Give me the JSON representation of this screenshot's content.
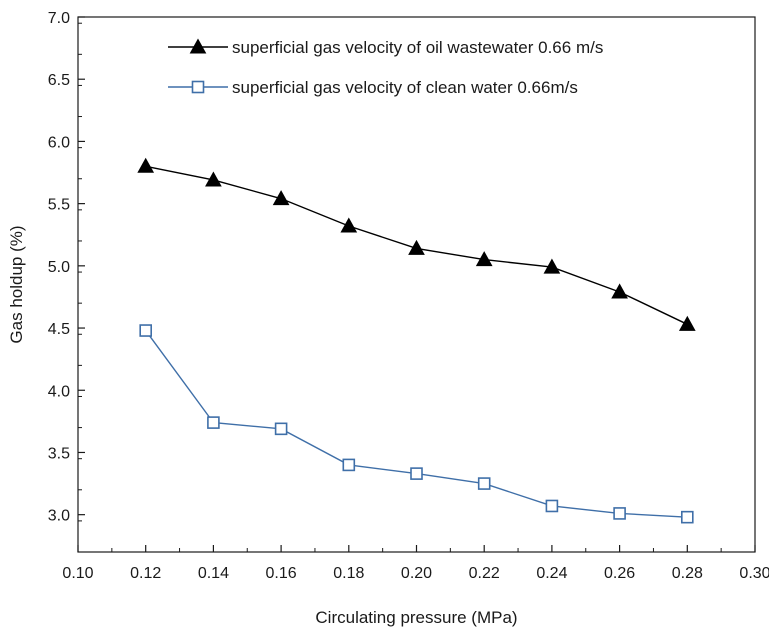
{
  "chart_data": {
    "type": "line",
    "xlabel": "Circulating pressure (MPa)",
    "ylabel": "Gas holdup (%)",
    "xlim": [
      0.1,
      0.3
    ],
    "ylim": [
      2.7,
      7.0
    ],
    "xticks": [
      "0.10",
      "0.12",
      "0.14",
      "0.16",
      "0.18",
      "0.20",
      "0.22",
      "0.24",
      "0.26",
      "0.28",
      "0.30"
    ],
    "yticks": [
      "3.0",
      "3.5",
      "4.0",
      "4.5",
      "5.0",
      "5.5",
      "6.0",
      "6.5",
      "7.0"
    ],
    "grid": false,
    "legend_position": "top-right",
    "x": [
      0.12,
      0.14,
      0.16,
      0.18,
      0.2,
      0.22,
      0.24,
      0.26,
      0.28
    ],
    "series": [
      {
        "name": "superficial gas velocity of oil wastewater 0.66 m/s",
        "marker": "filled-triangle",
        "color": "#000000",
        "values": [
          5.8,
          5.69,
          5.54,
          5.32,
          5.14,
          5.05,
          4.99,
          4.79,
          4.53
        ]
      },
      {
        "name": "superficial gas velocity of clean water 0.66m/s",
        "marker": "open-square",
        "color": "#3f6fa8",
        "values": [
          4.48,
          3.74,
          3.69,
          3.4,
          3.33,
          3.25,
          3.07,
          3.01,
          2.98
        ]
      }
    ]
  }
}
